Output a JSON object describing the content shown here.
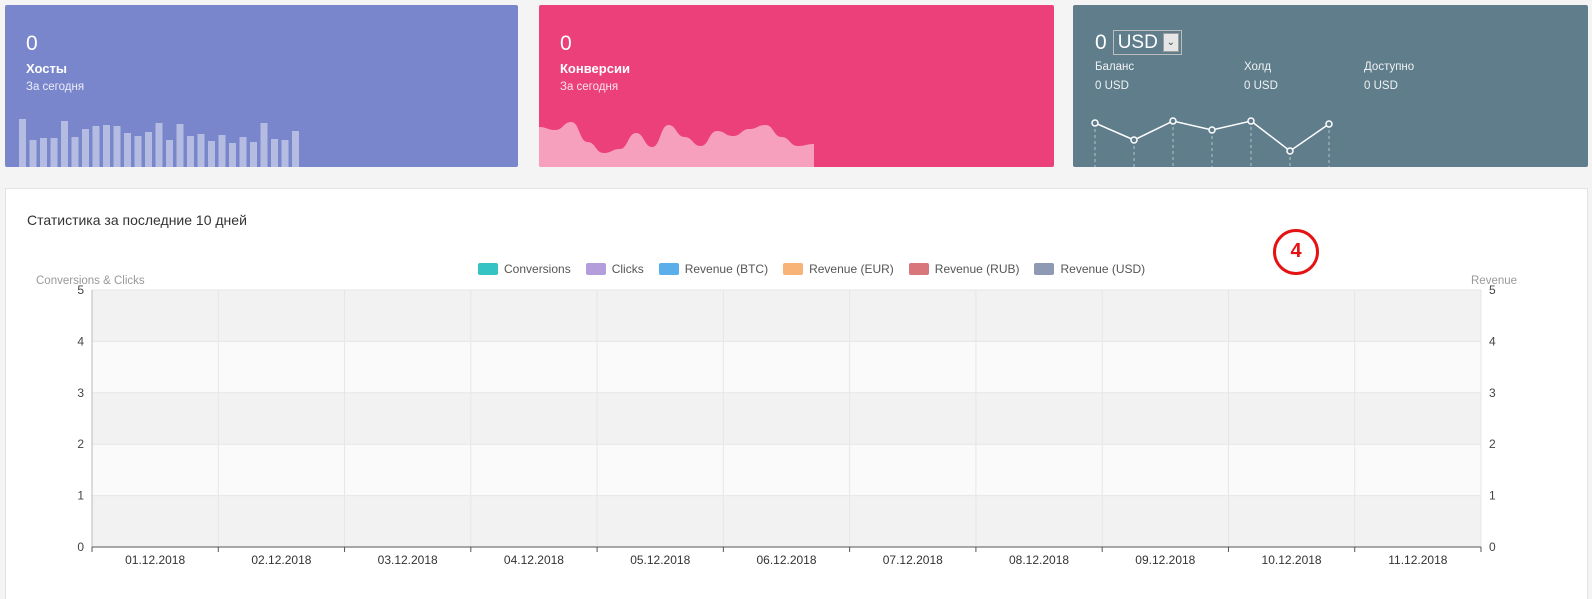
{
  "cards": {
    "hosts": {
      "value": "0",
      "title": "Хосты",
      "subtitle": "За сегодня",
      "color": "#7986cb",
      "spark_values": [
        48,
        27,
        29,
        29,
        46,
        30,
        38,
        41,
        42,
        41,
        34,
        31,
        35,
        44,
        27,
        43,
        31,
        33,
        26,
        32,
        24,
        30,
        25,
        44,
        28,
        27,
        36
      ]
    },
    "conversions": {
      "value": "0",
      "title": "Конверсии",
      "subtitle": "За сегодня",
      "color": "#ec407a",
      "spark_values": [
        40,
        37,
        45,
        25,
        14,
        18,
        34,
        20,
        42,
        30,
        21,
        36,
        31,
        38,
        42,
        30,
        21,
        23
      ]
    },
    "balance": {
      "value": "0",
      "currency": "USD",
      "color": "#607d8b",
      "columns": [
        {
          "label": "Баланс",
          "value": "0 USD"
        },
        {
          "label": "Холд",
          "value": "0 USD"
        },
        {
          "label": "Доступно",
          "value": "0 USD"
        }
      ],
      "spark_values": [
        44,
        27,
        46,
        37,
        46,
        16,
        43
      ]
    }
  },
  "stats": {
    "title": "Статистика за последние 10 дней",
    "marker_number": "4"
  },
  "chart_data": {
    "type": "line",
    "x": [
      "01.12.2018",
      "02.12.2018",
      "03.12.2018",
      "04.12.2018",
      "05.12.2018",
      "06.12.2018",
      "07.12.2018",
      "08.12.2018",
      "09.12.2018",
      "10.12.2018",
      "11.12.2018"
    ],
    "series": [
      {
        "name": "Conversions",
        "color": "#36c3c3",
        "values": [
          0,
          0,
          0,
          0,
          0,
          0,
          0,
          0,
          0,
          0,
          0
        ]
      },
      {
        "name": "Clicks",
        "color": "#b39ddb",
        "values": [
          0,
          0,
          0,
          0,
          0,
          0,
          0,
          0,
          0,
          0,
          0
        ]
      },
      {
        "name": "Revenue (BTC)",
        "color": "#5aaeea",
        "values": [
          0,
          0,
          0,
          0,
          0,
          0,
          0,
          0,
          0,
          0,
          0
        ]
      },
      {
        "name": "Revenue (EUR)",
        "color": "#f8b379",
        "values": [
          0,
          0,
          0,
          0,
          0,
          0,
          0,
          0,
          0,
          0,
          0
        ]
      },
      {
        "name": "Revenue (RUB)",
        "color": "#d9767c",
        "values": [
          0,
          0,
          0,
          0,
          0,
          0,
          0,
          0,
          0,
          0,
          0
        ]
      },
      {
        "name": "Revenue (USD)",
        "color": "#8e99b3",
        "values": [
          0,
          0,
          0,
          0,
          0,
          0,
          0,
          0,
          0,
          0,
          0
        ]
      }
    ],
    "ylabel_left": "Conversions & Clicks",
    "ylabel_right": "Revenue",
    "ylim": [
      0,
      5
    ],
    "yticks": [
      0,
      1,
      2,
      3,
      4,
      5
    ],
    "grid": true,
    "legend": "top"
  }
}
